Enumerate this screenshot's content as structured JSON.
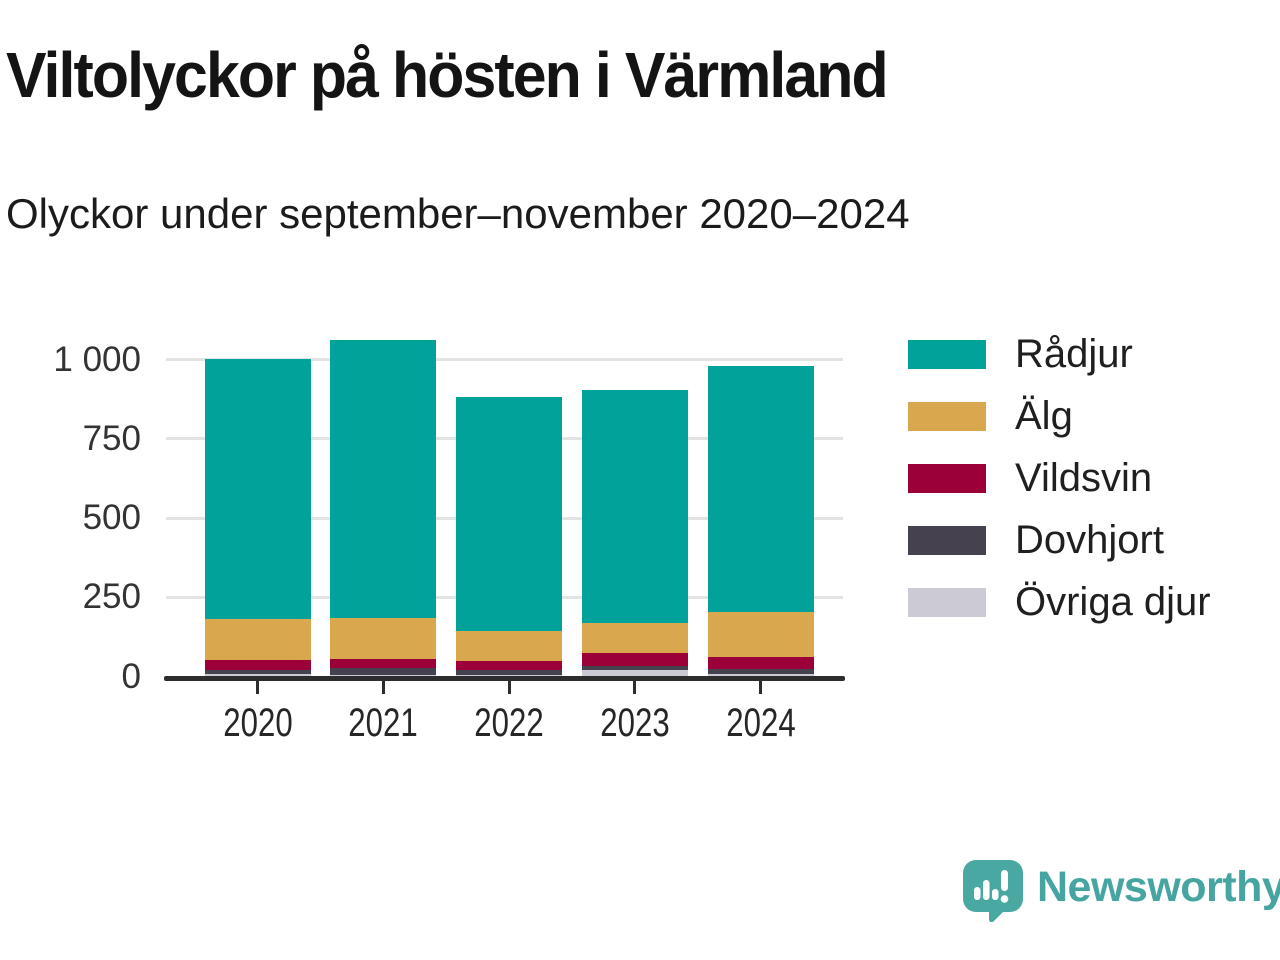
{
  "header": {
    "title": "Viltolyckor på hösten i Värmland",
    "subtitle": "Olyckor under september–november 2020–2024"
  },
  "chart_data": {
    "type": "bar",
    "stacked": true,
    "title": "Viltolyckor på hösten i Värmland",
    "subtitle": "Olyckor under september–november 2020–2024",
    "categories": [
      "2020",
      "2021",
      "2022",
      "2023",
      "2024"
    ],
    "series": [
      {
        "name": "Rådjur",
        "color": "#00a29a",
        "values": [
          823,
          877,
          741,
          737,
          779
        ]
      },
      {
        "name": "Älg",
        "color": "#d9a84e",
        "values": [
          128,
          128,
          92,
          94,
          142
        ]
      },
      {
        "name": "Vildsvin",
        "color": "#9b0039",
        "values": [
          33,
          28,
          28,
          41,
          35
        ]
      },
      {
        "name": "Dovhjort",
        "color": "#45414e",
        "values": [
          10,
          22,
          17,
          13,
          16
        ]
      },
      {
        "name": "Övriga djur",
        "color": "#cccad5",
        "values": [
          9,
          5,
          5,
          20,
          9
        ]
      }
    ],
    "totals": [
      1003,
      1060,
      883,
      905,
      981
    ],
    "yticks": [
      0,
      250,
      500,
      750,
      1000
    ],
    "ytick_labels": [
      "0",
      "250",
      "500",
      "750",
      "1 000"
    ],
    "ylim": [
      0,
      1075
    ],
    "grid": "horizontal",
    "legend_position": "right",
    "axis_color": "#2d2d2d",
    "grid_color": "#e3e3e3"
  },
  "footer": {
    "brand": "Newsworthy",
    "brand_color": "#46a5a1",
    "logo_icon": "speech-bubble-bar-chart-icon"
  }
}
